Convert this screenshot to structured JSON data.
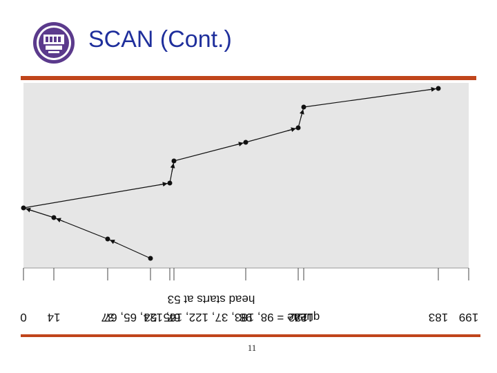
{
  "slide": {
    "title": "SCAN (Cont.)",
    "page_number": "11"
  },
  "colors": {
    "title": "#1f2f9c",
    "rule": "#c0451b",
    "plot_background": "#e6e6e6",
    "logo": "#5b3a8c"
  },
  "logo_icon": "university-seal-icon",
  "diagram": {
    "orientation": "rotated 180 degrees",
    "tracks": [
      0,
      14,
      37,
      53,
      65,
      67,
      98,
      122,
      124,
      183,
      199
    ],
    "tick_labels": [
      "0",
      "14",
      "37",
      "53",
      "65",
      "67",
      "98",
      "122",
      "124",
      "183",
      "199"
    ],
    "caption_queue": "queue = 98, 183, 37, 122, 14, 124, 65, 67",
    "caption_head": "head starts at 53",
    "path": [
      53,
      37,
      14,
      0,
      65,
      67,
      98,
      122,
      124,
      183
    ]
  }
}
